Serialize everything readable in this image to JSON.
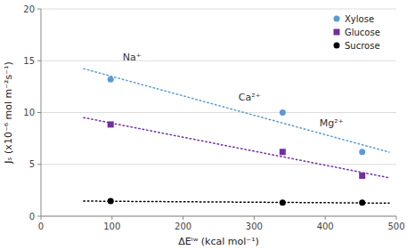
{
  "chart_data": {
    "type": "scatter",
    "x_label": "ΔEᴵʷ (kcal mol⁻¹)",
    "y_label": "Jₛ (x10⁻⁶ mol m⁻²s⁻¹)",
    "x": [
      98,
      340,
      452
    ],
    "series": [
      {
        "name": "Xylose",
        "color": "#5B9BD5",
        "marker": "circle",
        "values": [
          13.2,
          10.0,
          6.2
        ],
        "trend": {
          "x": [
            60,
            490
          ],
          "values": [
            14.2315,
            6.1799
          ],
          "line_style": "dotted"
        }
      },
      {
        "name": "Glucose",
        "color": "#7030A0",
        "marker": "square",
        "values": [
          8.85,
          6.2,
          3.9
        ],
        "trend": {
          "x": [
            60,
            490
          ],
          "values": [
            9.511,
            3.7072
          ],
          "line_style": "dotted"
        }
      },
      {
        "name": "Sucrose",
        "color": "#000000",
        "marker": "circle",
        "values": [
          1.45,
          1.3,
          1.3
        ],
        "trend": {
          "x": [
            60,
            490
          ],
          "values": [
            1.4577,
            1.262
          ],
          "line_style": "dotted"
        }
      }
    ],
    "annotations": [
      {
        "text": "Na⁺",
        "x": 115,
        "y": 15.0
      },
      {
        "text": "Ca²⁺",
        "x": 278,
        "y": 11.2
      },
      {
        "text": "Mg²⁺",
        "x": 392,
        "y": 8.7
      }
    ],
    "xlim": [
      0,
      500
    ],
    "ylim": [
      0,
      20
    ],
    "xticks": [
      0,
      100,
      200,
      300,
      400,
      500
    ],
    "yticks": [
      0,
      5,
      10,
      15,
      20
    ],
    "grid": "y",
    "legend": "top-right"
  }
}
